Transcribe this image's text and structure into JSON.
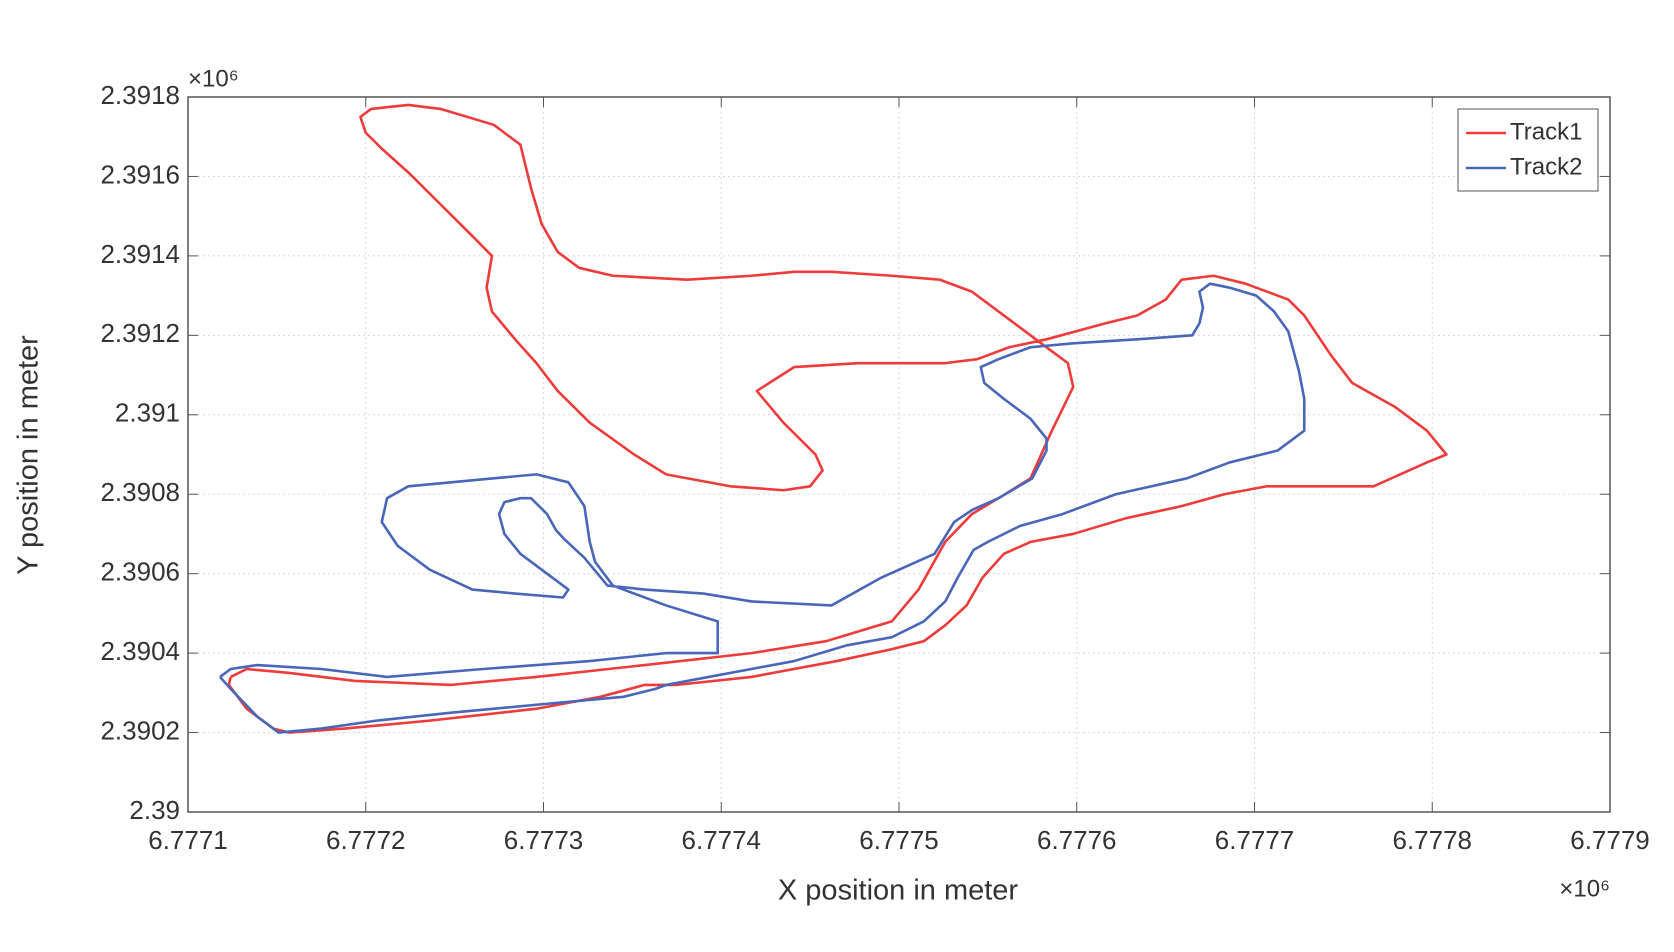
{
  "chart_data": {
    "type": "line",
    "xlabel": "X position in meter",
    "ylabel": "Y position in meter",
    "x_exponent_label": "×10⁶",
    "y_exponent_label": "×10⁶",
    "xlim": [
      6.7771,
      6.7779
    ],
    "ylim": [
      2.39,
      2.3918
    ],
    "xticks": [
      6.7771,
      6.7772,
      6.7773,
      6.7774,
      6.7775,
      6.7776,
      6.7777,
      6.7778,
      6.7779
    ],
    "yticks": [
      2.39,
      2.3902,
      2.3904,
      2.3906,
      2.3908,
      2.391,
      2.3912,
      2.3914,
      2.3916,
      2.3918
    ],
    "grid": true,
    "legend": "upper right",
    "series": [
      {
        "name": "Track1",
        "color": "#ee3b3b",
        "x": [
          6.777124,
          6.777133,
          6.777157,
          6.777194,
          6.777248,
          6.777296,
          6.777357,
          6.777417,
          6.777459,
          6.777496,
          6.777511,
          6.777526,
          6.777541,
          6.777556,
          6.777574,
          6.777586,
          6.777598,
          6.777595,
          6.77758,
          6.777562,
          6.777541,
          6.777523,
          6.777496,
          6.777462,
          6.777441,
          6.777417,
          6.777381,
          6.777339,
          6.77732,
          6.777308,
          6.777299,
          6.777293,
          6.777287,
          6.777272,
          6.777242,
          6.777224,
          6.777203,
          6.777197,
          6.7772,
          6.777209,
          6.777224,
          6.777242,
          6.77726,
          6.777271,
          6.777268,
          6.777271,
          6.777284,
          6.777296,
          6.777308,
          6.777326,
          6.777351,
          6.777369,
          6.777405,
          6.777435,
          6.77745,
          6.777457,
          6.777453,
          6.777435,
          6.77742,
          6.777441,
          6.777477,
          6.777526,
          6.777544,
          6.777562,
          6.777583,
          6.777616,
          6.777634,
          6.77765,
          6.777659,
          6.777677,
          6.777695,
          6.777719,
          6.777728,
          6.777743,
          6.777755,
          6.777779,
          6.777797,
          6.777808,
          6.777797,
          6.777767,
          6.777737,
          6.777707,
          6.777683,
          6.777659,
          6.777628,
          6.777598,
          6.777574,
          6.777559,
          6.777547,
          6.777538,
          6.777526,
          6.777514,
          6.777496,
          6.777465,
          6.777417,
          6.777375,
          6.777357,
          6.777332,
          6.777296,
          6.777236,
          6.777188,
          6.777157,
          6.777148,
          6.777133,
          6.777123,
          6.777124
        ],
        "values": [
          2.39034,
          2.39036,
          2.39035,
          2.39033,
          2.39032,
          2.39034,
          2.39037,
          2.3904,
          2.39043,
          2.39048,
          2.39056,
          2.39068,
          2.39075,
          2.39079,
          2.39084,
          2.39096,
          2.39107,
          2.39113,
          2.39118,
          2.39124,
          2.39131,
          2.39134,
          2.39135,
          2.39136,
          2.39136,
          2.39135,
          2.39134,
          2.39135,
          2.39137,
          2.39141,
          2.39148,
          2.39157,
          2.39168,
          2.39173,
          2.39177,
          2.39178,
          2.39177,
          2.39175,
          2.39171,
          2.39167,
          2.39161,
          2.39153,
          2.39145,
          2.3914,
          2.39132,
          2.39126,
          2.39119,
          2.39113,
          2.39106,
          2.39098,
          2.3909,
          2.39085,
          2.39082,
          2.39081,
          2.39082,
          2.39086,
          2.3909,
          2.39098,
          2.39106,
          2.39112,
          2.39113,
          2.39113,
          2.39114,
          2.39117,
          2.39119,
          2.39123,
          2.39125,
          2.39129,
          2.39134,
          2.39135,
          2.39133,
          2.39129,
          2.39125,
          2.39115,
          2.39108,
          2.39102,
          2.39096,
          2.3909,
          2.39088,
          2.39082,
          2.39082,
          2.39082,
          2.3908,
          2.39077,
          2.39074,
          2.3907,
          2.39068,
          2.39065,
          2.39059,
          2.39052,
          2.39047,
          2.39043,
          2.39041,
          2.39038,
          2.39034,
          2.39032,
          2.39032,
          2.39029,
          2.39026,
          2.39023,
          2.39021,
          2.3902,
          2.39021,
          2.39026,
          2.39032,
          2.39034
        ]
      },
      {
        "name": "Track2",
        "color": "#4a66b8",
        "x": [
          6.777118,
          6.777124,
          6.777139,
          6.777175,
          6.777212,
          6.777266,
          6.777326,
          6.777369,
          6.777398,
          6.777398,
          6.777369,
          6.777339,
          6.777329,
          6.777326,
          6.777323,
          6.777314,
          6.777296,
          6.777272,
          6.777248,
          6.777224,
          6.777212,
          6.777209,
          6.777218,
          6.777236,
          6.77726,
          6.777284,
          6.777311,
          6.777314,
          6.777302,
          6.777287,
          6.777278,
          6.777275,
          6.777278,
          6.777287,
          6.777293,
          6.777302,
          6.777307,
          6.777311,
          6.777323,
          6.777336,
          6.777357,
          6.77739,
          6.777417,
          6.777462,
          6.77749,
          6.77752,
          6.777531,
          6.777541,
          6.777556,
          6.777575,
          6.777583,
          6.777583,
          6.777574,
          6.777559,
          6.777548,
          6.777546,
          6.777556,
          6.777574,
          6.777598,
          6.777634,
          6.777665,
          6.777669,
          6.777671,
          6.777669,
          6.777675,
          6.777686,
          6.777701,
          6.777711,
          6.777719,
          6.777725,
          6.777728,
          6.777728,
          6.777713,
          6.777686,
          6.777662,
          6.777622,
          6.777592,
          6.777568,
          6.77755,
          6.777542,
          6.777533,
          6.777526,
          6.777514,
          6.777496,
          6.777471,
          6.777441,
          6.777417,
          6.777393,
          6.777369,
          6.777363,
          6.777345,
          6.777296,
          6.777248,
          6.777206,
          6.777175,
          6.777151,
          6.777139,
          6.777124,
          6.777118
        ],
        "values": [
          2.39034,
          2.39036,
          2.39037,
          2.39036,
          2.39034,
          2.39036,
          2.39038,
          2.3904,
          2.3904,
          2.39048,
          2.39052,
          2.39057,
          2.39063,
          2.39068,
          2.39077,
          2.39083,
          2.39085,
          2.39084,
          2.39083,
          2.39082,
          2.39079,
          2.39073,
          2.39067,
          2.39061,
          2.39056,
          2.39055,
          2.39054,
          2.39056,
          2.3906,
          2.39065,
          2.3907,
          2.39075,
          2.39078,
          2.39079,
          2.39079,
          2.39075,
          2.39071,
          2.39069,
          2.39064,
          2.39057,
          2.39056,
          2.39055,
          2.39053,
          2.39052,
          2.39059,
          2.39065,
          2.39073,
          2.39076,
          2.39079,
          2.39084,
          2.39091,
          2.39094,
          2.39099,
          2.39104,
          2.39108,
          2.39112,
          2.39114,
          2.39117,
          2.39118,
          2.39119,
          2.3912,
          2.39123,
          2.39127,
          2.39131,
          2.39133,
          2.39132,
          2.3913,
          2.39126,
          2.39121,
          2.39111,
          2.39104,
          2.39096,
          2.39091,
          2.39088,
          2.39084,
          2.3908,
          2.39075,
          2.39072,
          2.39068,
          2.39066,
          2.39059,
          2.39053,
          2.39048,
          2.39044,
          2.39042,
          2.39038,
          2.39036,
          2.39034,
          2.39032,
          2.39031,
          2.39029,
          2.39027,
          2.39025,
          2.39023,
          2.39021,
          2.3902,
          2.39024,
          2.39031,
          2.39034
        ]
      }
    ]
  }
}
